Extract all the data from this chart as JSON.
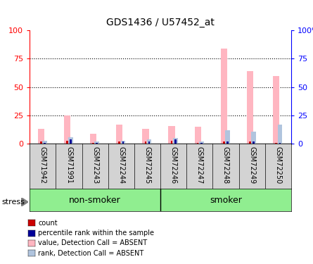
{
  "title": "GDS1436 / U57452_at",
  "samples": [
    "GSM71942",
    "GSM71991",
    "GSM72243",
    "GSM72244",
    "GSM72245",
    "GSM72246",
    "GSM72247",
    "GSM72248",
    "GSM72249",
    "GSM72250"
  ],
  "value_bars": [
    13,
    25,
    9,
    17,
    13,
    16,
    15,
    84,
    64,
    60
  ],
  "rank_bars": [
    3,
    6,
    2,
    3,
    4,
    5,
    2,
    12,
    11,
    17
  ],
  "count_bars": [
    2,
    3,
    1,
    2,
    2,
    3,
    1,
    2,
    2,
    1
  ],
  "percentile_bars": [
    1,
    4,
    1,
    2,
    2,
    4,
    1,
    2,
    2,
    1
  ],
  "value_color": "#FFB6C1",
  "rank_color": "#B0C4DE",
  "count_color": "#CC0000",
  "percentile_color": "#000099",
  "ylim": [
    0,
    100
  ],
  "yticks": [
    0,
    25,
    50,
    75,
    100
  ],
  "stress_label": "stress",
  "label_area_color": "#D3D3D3",
  "group_area_color": "#90EE90",
  "non_smoker_label": "non-smoker",
  "smoker_label": "smoker",
  "group_split": 5,
  "legend_items": [
    {
      "color": "#CC0000",
      "label": "count"
    },
    {
      "color": "#000099",
      "label": "percentile rank within the sample"
    },
    {
      "color": "#FFB6C1",
      "label": "value, Detection Call = ABSENT"
    },
    {
      "color": "#B0C4DE",
      "label": "rank, Detection Call = ABSENT"
    }
  ]
}
